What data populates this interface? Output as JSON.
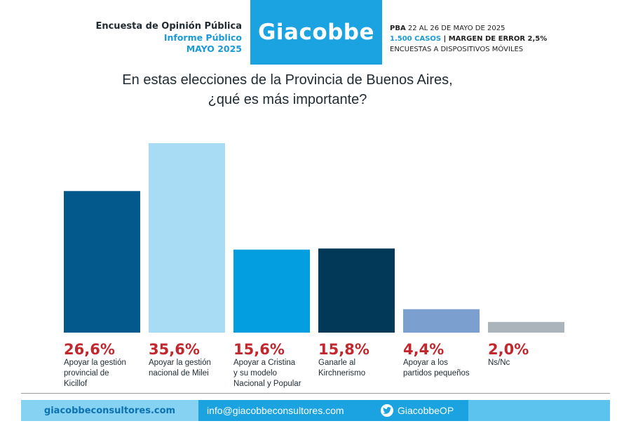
{
  "header": {
    "left_line1": "Encuesta de Opinión Pública",
    "left_line2": "Informe Público",
    "left_line3": "MAYO 2025",
    "logo": "Giacobbe",
    "right_line1_bold": "PBA",
    "right_line1_rest": " 22 AL 26 DE MAYO DE 2025",
    "right_line2_cyan": "1.500 CASOS",
    "right_line2_rest": " | MARGEN DE ERROR 2,5%",
    "right_line3": "ENCUESTAS A DISPOSITIVOS MÓVILES"
  },
  "question": {
    "line1": "En estas elecciones de la Provincia de Buenos Aires,",
    "line2": "¿qué es más importante?"
  },
  "chart_data": {
    "type": "bar",
    "title": "En estas elecciones de la Provincia de Buenos Aires, ¿qué es más importante?",
    "categories": [
      "Apoyar la gestión provincial de Kicillof",
      "Apoyar la gestión nacional de Milei",
      "Apoyar a Cristina y su modelo Nacional y Popular",
      "Ganarle al Kirchnerismo",
      "Apoyar a los partidos pequeños",
      "Ns/Nc"
    ],
    "category_lines": [
      [
        "Apoyar la gestión",
        "provincial de",
        "Kicillof"
      ],
      [
        "Apoyar la gestión",
        "nacional de Milei"
      ],
      [
        "Apoyar a Cristina",
        "y su modelo",
        "Nacional y Popular"
      ],
      [
        "Ganarle al",
        "Kirchnerismo"
      ],
      [
        "Apoyar a los",
        "partidos pequeños"
      ],
      [
        "Ns/Nc"
      ]
    ],
    "values": [
      26.6,
      35.6,
      15.6,
      15.8,
      4.4,
      2.0
    ],
    "value_labels": [
      "26,6%",
      "35,6%",
      "15,6%",
      "15,8%",
      "4,4%",
      "2,0%"
    ],
    "colors": [
      "#03588c",
      "#a8dcf5",
      "#039edf",
      "#023858",
      "#7b9fcf",
      "#aab4ba"
    ],
    "label_color": "#c1272d",
    "ylim": [
      0,
      35.6
    ],
    "grid": false
  },
  "footer": {
    "website": "giacobbeconsultores.com",
    "email": "info@giacobbeconsultores.com",
    "twitter_icon": "twitter-bird-icon",
    "twitter": "GiacobbeOP"
  }
}
